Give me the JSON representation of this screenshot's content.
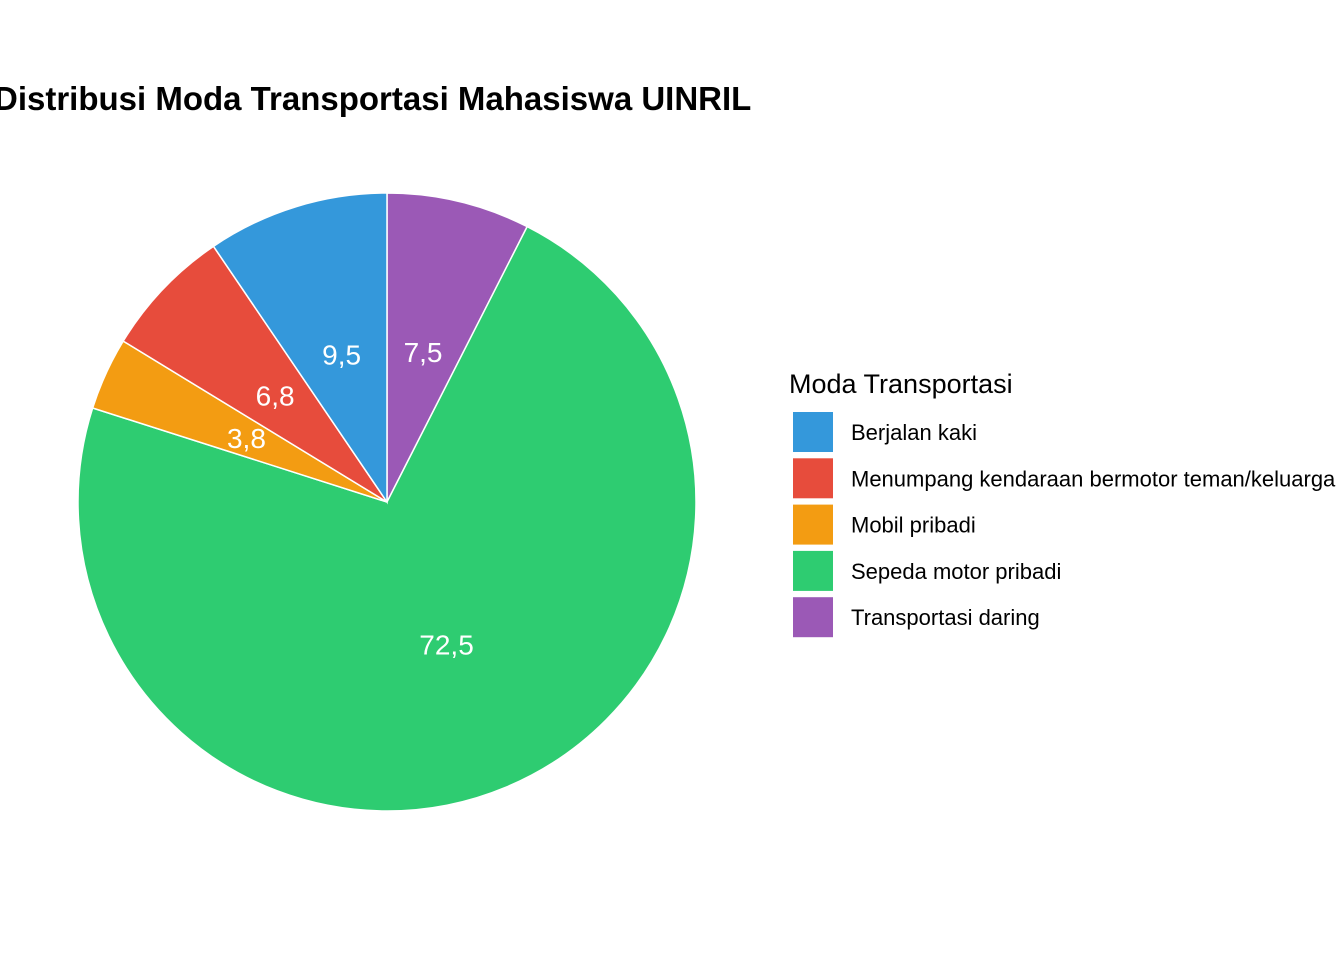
{
  "chart_data": {
    "type": "pie",
    "title": "Distribusi Moda Transportasi Mahasiswa UINRIL",
    "legend_title": "Moda Transportasi",
    "legend_position": "right",
    "slice_order_clockwise_from_top": [
      "Transportasi daring",
      "Sepeda motor pribadi",
      "Mobil pribadi",
      "Menumpang kendaraan bermotor teman/keluarga",
      "Berjalan kaki"
    ],
    "categories": [
      {
        "name": "Berjalan kaki",
        "value": 9.5,
        "label": "9,5",
        "color": "#3498db"
      },
      {
        "name": "Menumpang kendaraan bermotor teman/keluarga",
        "value": 6.8,
        "label": "6,8",
        "color": "#e74c3c"
      },
      {
        "name": "Mobil pribadi",
        "value": 3.8,
        "label": "3,8",
        "color": "#f39c12"
      },
      {
        "name": "Sepeda motor pribadi",
        "value": 72.5,
        "label": "72,5",
        "color": "#2ecc71"
      },
      {
        "name": "Transportasi daring",
        "value": 7.5,
        "label": "7,5",
        "color": "#9b59b6"
      }
    ]
  }
}
